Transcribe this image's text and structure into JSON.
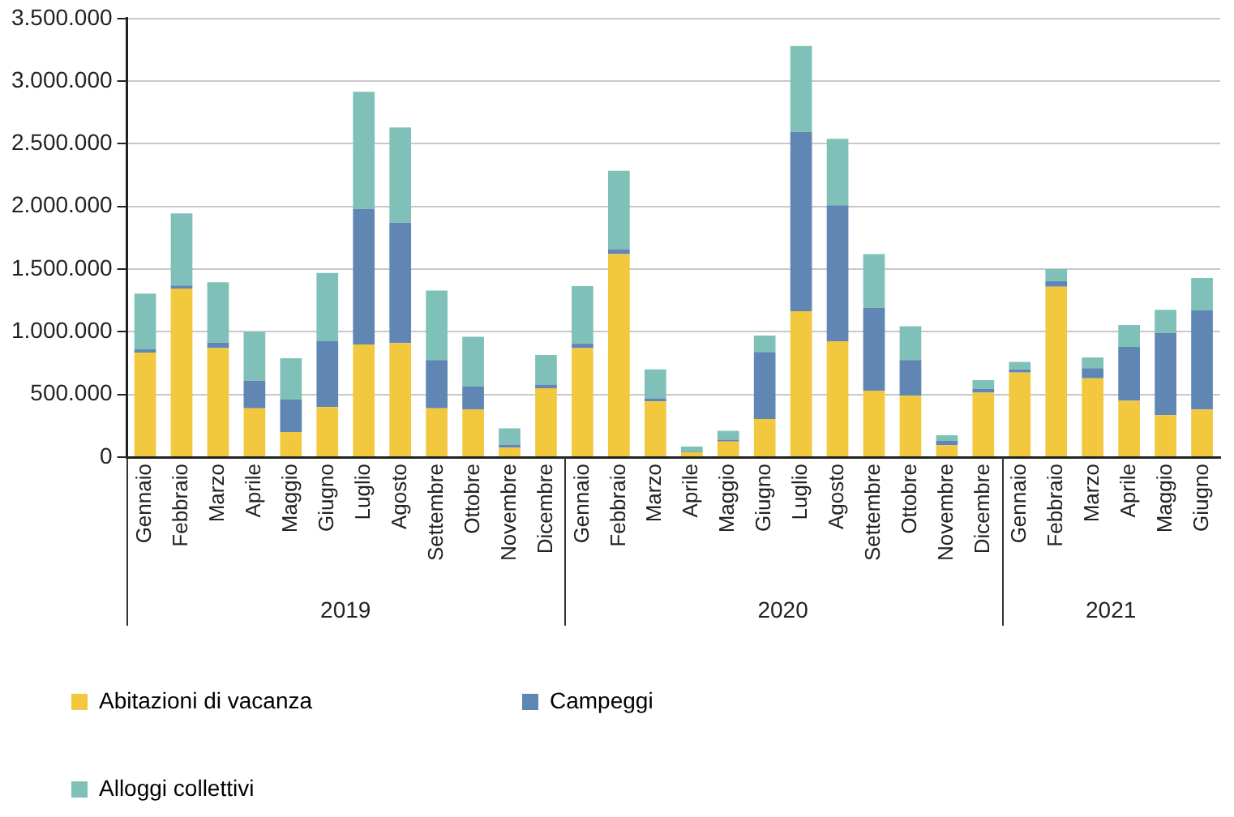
{
  "chart_data": {
    "type": "bar",
    "stacked": true,
    "categories": [
      "Gennaio",
      "Febbraio",
      "Marzo",
      "Aprile",
      "Maggio",
      "Giugno",
      "Luglio",
      "Agosto",
      "Settembre",
      "Ottobre",
      "Novembre",
      "Dicembre",
      "Gennaio",
      "Febbraio",
      "Marzo",
      "Aprile",
      "Maggio",
      "Giugno",
      "Luglio",
      "Agosto",
      "Settembre",
      "Ottobre",
      "Novembre",
      "Dicembre",
      "Gennaio",
      "Febbraio",
      "Marzo",
      "Aprile",
      "Maggio",
      "Giugno"
    ],
    "series": [
      {
        "name": "Abitazioni di vacanza",
        "color": "#f2c83f",
        "values": [
          835000,
          1345000,
          870000,
          390000,
          200000,
          400000,
          900000,
          910000,
          390000,
          380000,
          75000,
          550000,
          870000,
          1620000,
          445000,
          40000,
          125000,
          305000,
          1165000,
          925000,
          530000,
          490000,
          95000,
          515000,
          675000,
          1360000,
          630000,
          450000,
          335000,
          380000
        ]
      },
      {
        "name": "Campeggi",
        "color": "#6086b3",
        "values": [
          25000,
          25000,
          45000,
          220000,
          260000,
          525000,
          1080000,
          960000,
          385000,
          185000,
          25000,
          30000,
          35000,
          40000,
          25000,
          5000,
          15000,
          535000,
          1430000,
          1085000,
          660000,
          285000,
          35000,
          30000,
          25000,
          45000,
          80000,
          430000,
          655000,
          790000
        ]
      },
      {
        "name": "Alloggi collettivi",
        "color": "#7fc1b8",
        "values": [
          445000,
          575000,
          480000,
          390000,
          330000,
          545000,
          935000,
          760000,
          555000,
          395000,
          130000,
          235000,
          460000,
          625000,
          230000,
          40000,
          70000,
          130000,
          685000,
          530000,
          430000,
          270000,
          45000,
          70000,
          60000,
          95000,
          85000,
          175000,
          185000,
          260000
        ]
      }
    ],
    "annotations": [
      "2019",
      "2020",
      "2021"
    ],
    "ylim": [
      0,
      3500000
    ],
    "yticks": [
      {
        "value": 0,
        "label": "0"
      },
      {
        "value": 500000,
        "label": "500.000"
      },
      {
        "value": 1000000,
        "label": "1.000.000"
      },
      {
        "value": 1500000,
        "label": "1.500.000"
      },
      {
        "value": 2000000,
        "label": "2.000.000"
      },
      {
        "value": 2500000,
        "label": "2.500.000"
      },
      {
        "value": 3000000,
        "label": "3.000.000"
      },
      {
        "value": 3500000,
        "label": "3.500.000"
      }
    ],
    "grid": "y",
    "legend": "bottom"
  }
}
